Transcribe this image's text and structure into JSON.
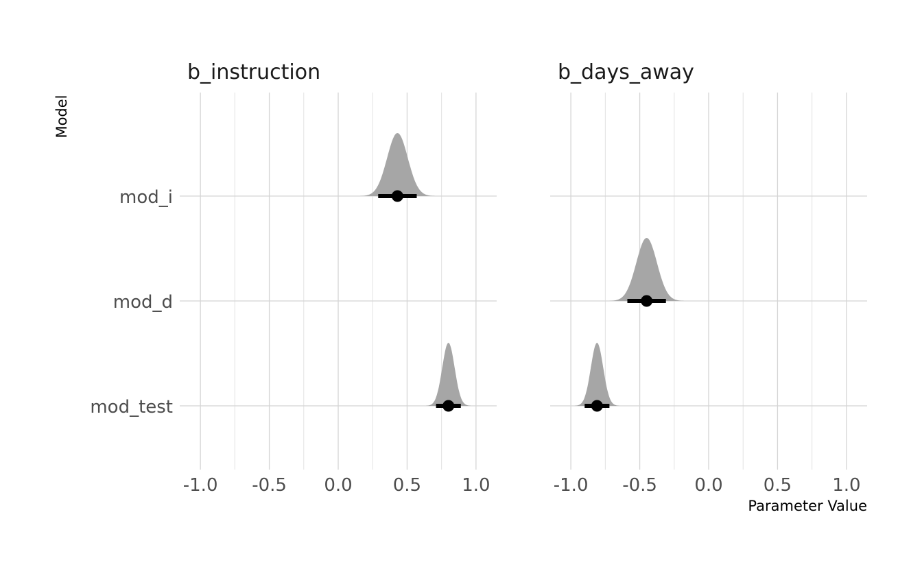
{
  "chart_data": {
    "type": "halfeye",
    "ylabel": "Model",
    "xlabel": "Parameter Value",
    "categories": [
      "mod_i",
      "mod_d",
      "mod_test"
    ],
    "xlim": [
      -1.15,
      1.15
    ],
    "x_ticks": [
      -1.0,
      -0.5,
      0.0,
      0.5,
      1.0
    ],
    "x_tick_labels": [
      "-1.0",
      "-0.5",
      "0.0",
      "0.5",
      "1.0"
    ],
    "grid": true,
    "fill_color": "#a6a6a6",
    "point_color": "#000000",
    "panels": [
      {
        "title": "b_instruction",
        "series": [
          {
            "model": "mod_i",
            "point": 0.43,
            "interval": [
              0.29,
              0.57
            ],
            "density_sd": 0.075
          },
          {
            "model": "mod_test",
            "point": 0.8,
            "interval": [
              0.71,
              0.89
            ],
            "density_sd": 0.045
          }
        ]
      },
      {
        "title": "b_days_away",
        "series": [
          {
            "model": "mod_d",
            "point": -0.45,
            "interval": [
              -0.59,
              -0.31
            ],
            "density_sd": 0.075
          },
          {
            "model": "mod_test",
            "point": -0.81,
            "interval": [
              -0.9,
              -0.72
            ],
            "density_sd": 0.045
          }
        ]
      }
    ]
  }
}
